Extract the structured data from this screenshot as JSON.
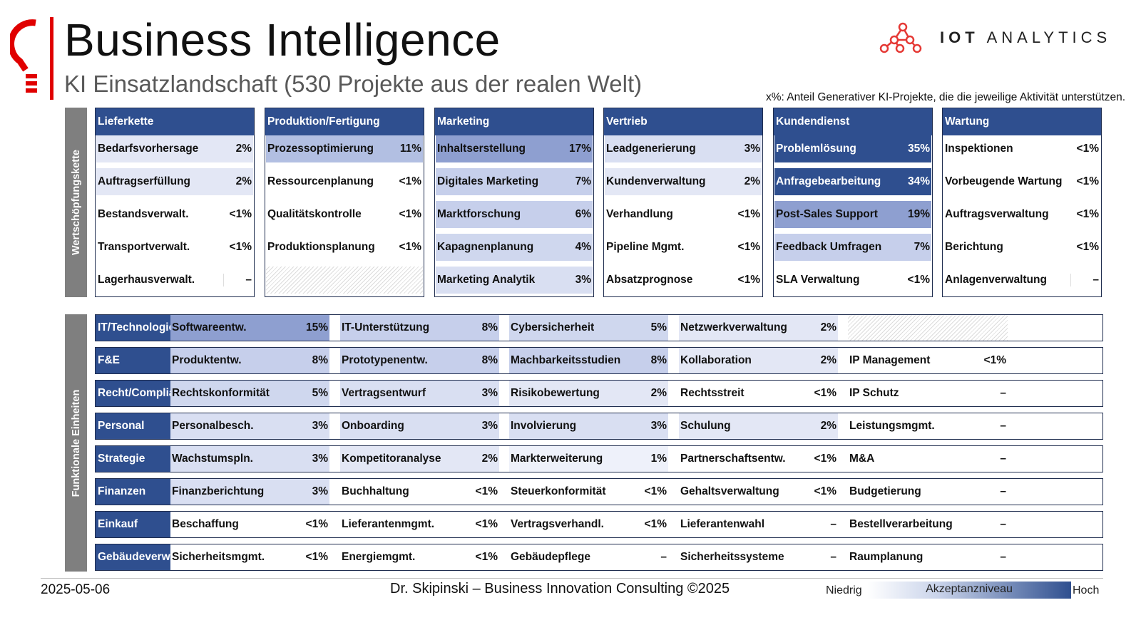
{
  "header": {
    "title": "Business Intelligence",
    "subtitle": "KI Einsatzlandschaft (530 Projekte aus der realen Welt)",
    "brand_bold": "IOT",
    "brand_light": "ANALYTICS",
    "note": "x%: Anteil Generativer KI-Projekte, die die jeweilige Aktivität unterstützen."
  },
  "sections": {
    "value_chain": "Wertschöpfungskette",
    "functional": "Funktionale Einheiten"
  },
  "colors": {
    "header_blue": "#2f4f8f",
    "accent_red": "#e00000",
    "section_gray": "#7f7f7f"
  },
  "value_chain": [
    {
      "title": "Lieferkette",
      "items": [
        {
          "label": "Bedarfsvorhersage",
          "pct": "2%"
        },
        {
          "label": "Auftragserfüllung",
          "pct": "2%"
        },
        {
          "label": "Bestandsverwalt.",
          "pct": "<1%"
        },
        {
          "label": "Transportverwalt.",
          "pct": "<1%"
        },
        {
          "label": "Lagerhausverwalt.",
          "pct": "–"
        }
      ]
    },
    {
      "title": "Produktion/Fertigung",
      "items": [
        {
          "label": "Prozessoptimierung",
          "pct": "11%"
        },
        {
          "label": "Ressourcenplanung",
          "pct": "<1%"
        },
        {
          "label": "Qualitätskontrolle",
          "pct": "<1%"
        },
        {
          "label": "Produktionsplanung",
          "pct": "<1%"
        },
        null
      ]
    },
    {
      "title": "Marketing",
      "items": [
        {
          "label": "Inhaltserstellung",
          "pct": "17%"
        },
        {
          "label": "Digitales Marketing",
          "pct": "7%"
        },
        {
          "label": "Marktforschung",
          "pct": "6%"
        },
        {
          "label": "Kapagnenplanung",
          "pct": "4%"
        },
        {
          "label": "Marketing Analytik",
          "pct": "3%"
        }
      ]
    },
    {
      "title": "Vertrieb",
      "items": [
        {
          "label": "Leadgenerierung",
          "pct": "3%"
        },
        {
          "label": "Kundenverwaltung",
          "pct": "2%"
        },
        {
          "label": "Verhandlung",
          "pct": "<1%"
        },
        {
          "label": "Pipeline Mgmt.",
          "pct": "<1%"
        },
        {
          "label": "Absatzprognose",
          "pct": "<1%"
        }
      ]
    },
    {
      "title": "Kundendienst",
      "items": [
        {
          "label": "Problemlösung",
          "pct": "35%"
        },
        {
          "label": "Anfragebearbeitung",
          "pct": "34%"
        },
        {
          "label": "Post-Sales Support",
          "pct": "19%"
        },
        {
          "label": "Feedback Umfragen",
          "pct": "7%"
        },
        {
          "label": "SLA Verwaltung",
          "pct": "<1%"
        }
      ]
    },
    {
      "title": "Wartung",
      "items": [
        {
          "label": "Inspektionen",
          "pct": "<1%"
        },
        {
          "label": "Vorbeugende Wartung",
          "pct": "<1%"
        },
        {
          "label": "Auftragsverwaltung",
          "pct": "<1%"
        },
        {
          "label": "Berichtung",
          "pct": "<1%"
        },
        {
          "label": "Anlagenverwaltung",
          "pct": "–"
        }
      ]
    }
  ],
  "functional_units": [
    {
      "title": "IT/Technologie",
      "items": [
        {
          "label": "Softwareentw.",
          "pct": "15%"
        },
        {
          "label": "IT-Unterstützung",
          "pct": "8%"
        },
        {
          "label": "Cybersicherheit",
          "pct": "5%"
        },
        {
          "label": "Netzwerkverwaltung",
          "pct": "2%"
        },
        null
      ]
    },
    {
      "title": "F&E",
      "items": [
        {
          "label": "Produktentw.",
          "pct": "8%"
        },
        {
          "label": "Prototypenentw.",
          "pct": "8%"
        },
        {
          "label": "Machbarkeitsstudien",
          "pct": "8%"
        },
        {
          "label": "Kollaboration",
          "pct": "2%"
        },
        {
          "label": "IP Management",
          "pct": "<1%"
        }
      ]
    },
    {
      "title": "Recht/Compliance",
      "items": [
        {
          "label": "Rechtskonformität",
          "pct": "5%"
        },
        {
          "label": "Vertragsentwurf",
          "pct": "3%"
        },
        {
          "label": "Risikobewertung",
          "pct": "2%"
        },
        {
          "label": "Rechtsstreit",
          "pct": "<1%"
        },
        {
          "label": "IP Schutz",
          "pct": "–"
        }
      ]
    },
    {
      "title": "Personal",
      "items": [
        {
          "label": "Personalbesch.",
          "pct": "3%"
        },
        {
          "label": "Onboarding",
          "pct": "3%"
        },
        {
          "label": "Involvierung",
          "pct": "3%"
        },
        {
          "label": "Schulung",
          "pct": "2%"
        },
        {
          "label": "Leistungsmgmt.",
          "pct": "–"
        }
      ]
    },
    {
      "title": "Strategie",
      "items": [
        {
          "label": "Wachstumspln.",
          "pct": "3%"
        },
        {
          "label": "Kompetitoranalyse",
          "pct": "2%"
        },
        {
          "label": "Markterweiterung",
          "pct": "1%"
        },
        {
          "label": "Partnerschaftsentw.",
          "pct": "<1%"
        },
        {
          "label": "M&A",
          "pct": "–"
        }
      ]
    },
    {
      "title": "Finanzen",
      "items": [
        {
          "label": "Finanzberichtung",
          "pct": "3%"
        },
        {
          "label": "Buchhaltung",
          "pct": "<1%"
        },
        {
          "label": "Steuerkonformität",
          "pct": "<1%"
        },
        {
          "label": "Gehaltsverwaltung",
          "pct": "<1%"
        },
        {
          "label": "Budgetierung",
          "pct": "–"
        }
      ]
    },
    {
      "title": "Einkauf",
      "items": [
        {
          "label": "Beschaffung",
          "pct": "<1%"
        },
        {
          "label": "Lieferantenmgmt.",
          "pct": "<1%"
        },
        {
          "label": "Vertragsverhandl.",
          "pct": "<1%"
        },
        {
          "label": "Lieferantenwahl",
          "pct": "–"
        },
        {
          "label": "Bestellverarbeitung",
          "pct": "–"
        }
      ]
    },
    {
      "title": "Gebäudeverw.",
      "items": [
        {
          "label": "Sicherheitsmgmt.",
          "pct": "<1%"
        },
        {
          "label": "Energiemgmt.",
          "pct": "<1%"
        },
        {
          "label": "Gebäudepflege",
          "pct": "–"
        },
        {
          "label": "Sicherheitssysteme",
          "pct": "–"
        },
        {
          "label": "Raumplanung",
          "pct": "–"
        }
      ]
    }
  ],
  "footer": {
    "date": "2025-05-06",
    "credit": "Dr. Skipinski – Business Innovation Consulting  ©2025",
    "legend_low": "Niedrig",
    "legend_mid": "Akzeptanzniveau",
    "legend_high": "Hoch"
  }
}
